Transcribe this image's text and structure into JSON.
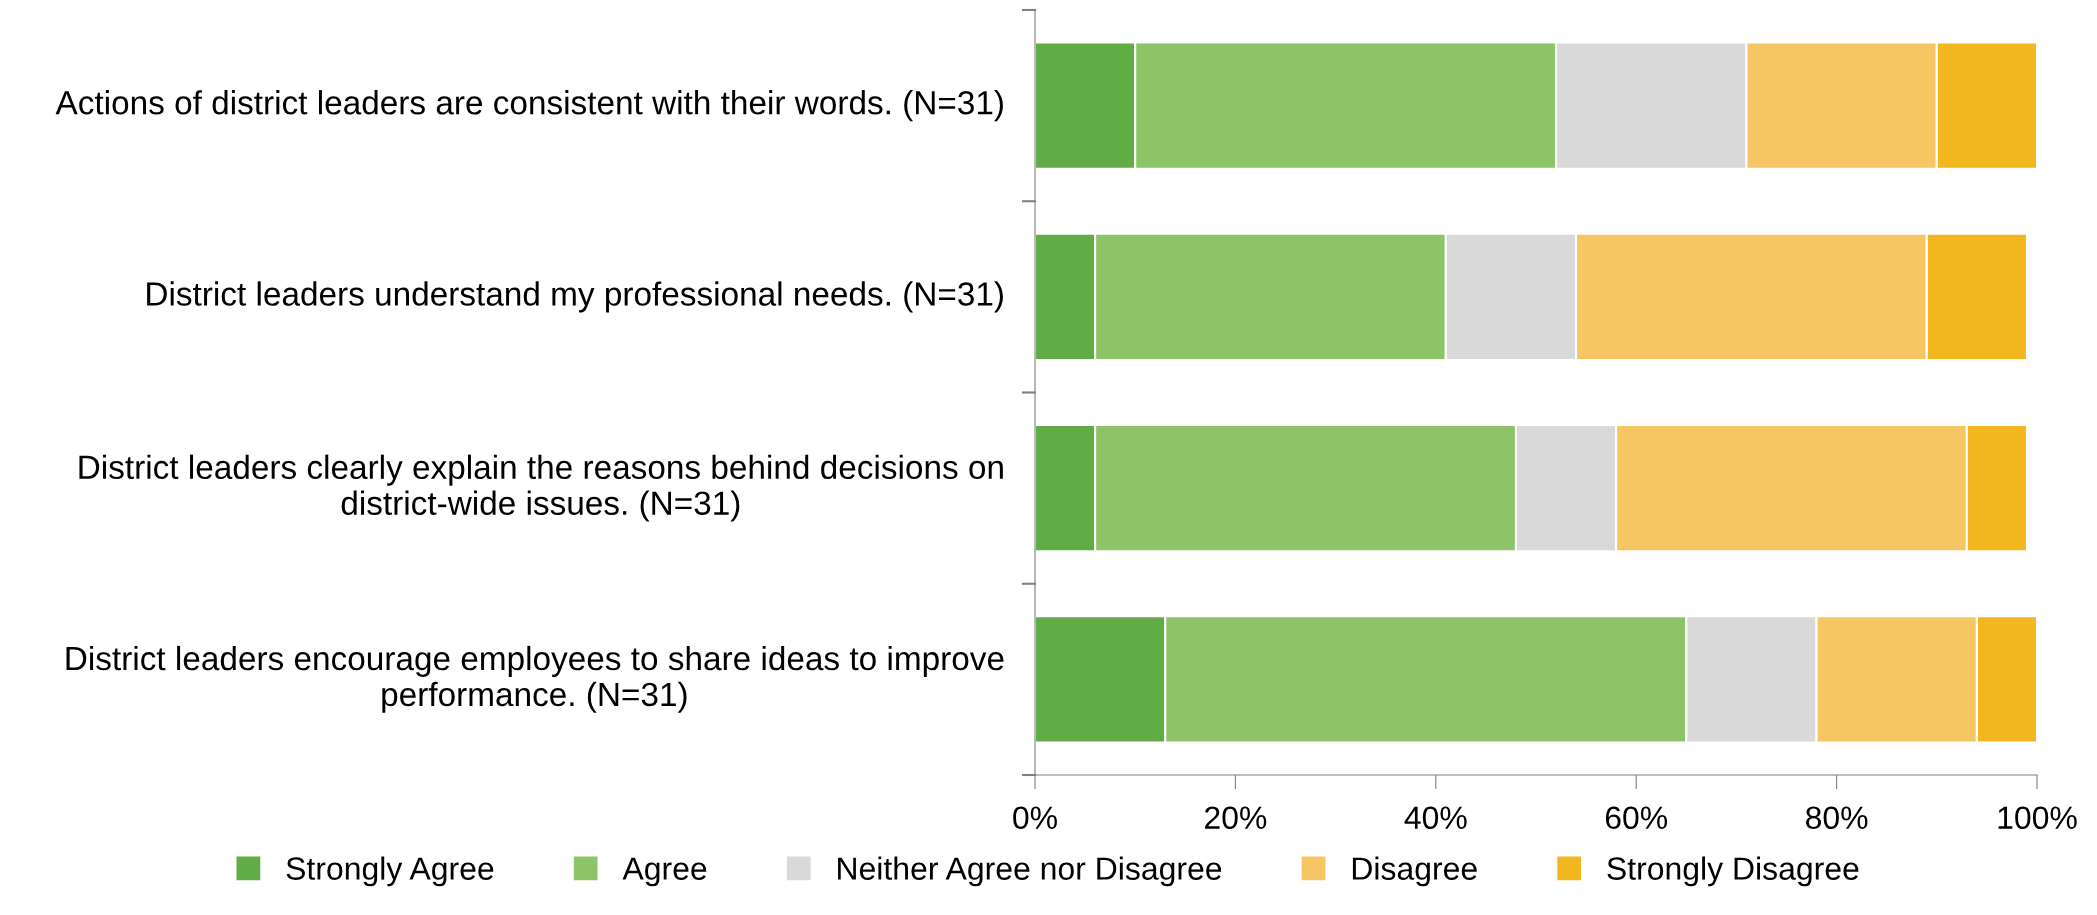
{
  "chart_data": {
    "type": "bar",
    "orientation": "horizontal",
    "stacked": true,
    "categories": [
      "Actions of district leaders are consistent with their words. (N=31)",
      "District leaders understand my professional needs. (N=31)",
      "District leaders clearly explain the reasons behind decisions on district-wide issues. (N=31)",
      "District leaders encourage employees to share ideas to improve performance. (N=31)"
    ],
    "series": [
      {
        "name": "Strongly Agree",
        "color": "#62ac46",
        "values": [
          10,
          6,
          6,
          13
        ]
      },
      {
        "name": "Agree",
        "color": "#8dc467",
        "values": [
          42,
          35,
          42,
          52
        ]
      },
      {
        "name": "Neither Agree nor Disagree",
        "color": "#d9d9d9",
        "values": [
          19,
          13,
          10,
          13
        ]
      },
      {
        "name": "Disagree",
        "color": "#f6c564",
        "values": [
          19,
          35,
          35,
          16
        ]
      },
      {
        "name": "Strongly Disagree",
        "color": "#f2b61e",
        "values": [
          10,
          10,
          6,
          6
        ]
      }
    ],
    "xlim": [
      0,
      100
    ],
    "xticks": [
      {
        "value": 0,
        "label": "0%"
      },
      {
        "value": 20,
        "label": "20%"
      },
      {
        "value": 40,
        "label": "40%"
      },
      {
        "value": 60,
        "label": "60%"
      },
      {
        "value": 80,
        "label": "80%"
      },
      {
        "value": 100,
        "label": "100%"
      }
    ],
    "grid": false,
    "legend": "bottom"
  }
}
